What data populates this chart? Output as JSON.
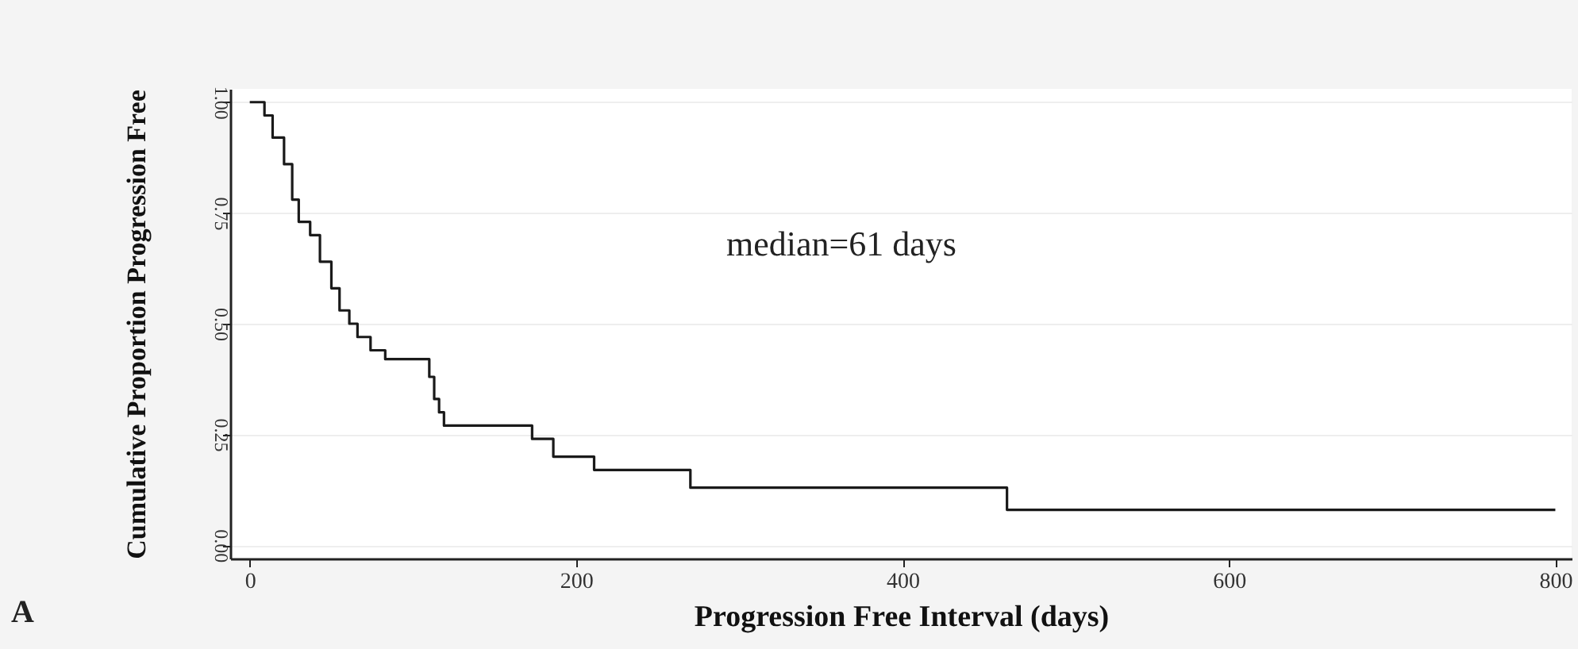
{
  "chart_data": {
    "type": "step",
    "xlabel": "Progression Free Interval (days)",
    "ylabel": "Cumulative Proportion Progression Free",
    "x": [
      0,
      9,
      14,
      21,
      26,
      30,
      37,
      43,
      50,
      55,
      61,
      66,
      74,
      83,
      110,
      113,
      116,
      119,
      173,
      186,
      211,
      270,
      464,
      800
    ],
    "values": [
      1,
      0.97,
      0.92,
      0.86,
      0.78,
      0.73,
      0.7,
      0.64,
      0.58,
      0.53,
      0.5,
      0.47,
      0.44,
      0.42,
      0.38,
      0.33,
      0.3,
      0.27,
      0.24,
      0.2,
      0.17,
      0.13,
      0.08,
      0.08
    ],
    "color": "#1a1a1a",
    "xlim": [
      -12,
      810
    ],
    "ylim": [
      -0.03,
      1.03
    ],
    "xticks": [
      0,
      200,
      400,
      600,
      800
    ],
    "yticks": [
      {
        "value": 0,
        "label": "0.00"
      },
      {
        "value": 0.25,
        "label": "0.25"
      },
      {
        "value": 0.5,
        "label": "0.50"
      },
      {
        "value": 0.75,
        "label": "0.75"
      },
      {
        "value": 1,
        "label": "1.00"
      }
    ],
    "grid": "y",
    "annotations": [
      "median=61 days",
      "A"
    ]
  }
}
